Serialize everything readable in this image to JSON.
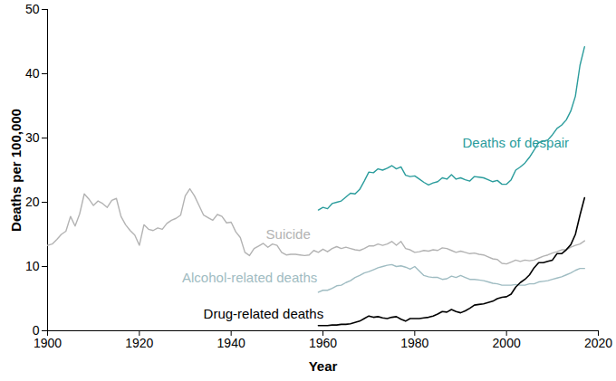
{
  "chart_data": {
    "type": "line",
    "x_label": "Year",
    "y_label": "Deaths per 100,000",
    "xlim": [
      1900,
      2020
    ],
    "xticks": [
      1900,
      1920,
      1940,
      1960,
      1980,
      2000,
      2020
    ],
    "ylim": [
      0,
      50
    ],
    "yticks": [
      0,
      10,
      20,
      30,
      40,
      50
    ],
    "grid": false,
    "x": [
      1900,
      1901,
      1902,
      1903,
      1904,
      1905,
      1906,
      1907,
      1908,
      1909,
      1910,
      1911,
      1912,
      1913,
      1914,
      1915,
      1916,
      1917,
      1918,
      1919,
      1920,
      1921,
      1922,
      1923,
      1924,
      1925,
      1926,
      1927,
      1928,
      1929,
      1930,
      1931,
      1932,
      1933,
      1934,
      1935,
      1936,
      1937,
      1938,
      1939,
      1940,
      1941,
      1942,
      1943,
      1944,
      1945,
      1946,
      1947,
      1948,
      1949,
      1950,
      1951,
      1952,
      1953,
      1954,
      1955,
      1956,
      1957,
      1958,
      1959,
      1960,
      1961,
      1962,
      1963,
      1964,
      1965,
      1966,
      1967,
      1968,
      1969,
      1970,
      1971,
      1972,
      1973,
      1974,
      1975,
      1976,
      1977,
      1978,
      1979,
      1980,
      1981,
      1982,
      1983,
      1984,
      1985,
      1986,
      1987,
      1988,
      1989,
      1990,
      1991,
      1992,
      1993,
      1994,
      1995,
      1996,
      1997,
      1998,
      1999,
      2000,
      2001,
      2002,
      2003,
      2004,
      2005,
      2006,
      2007,
      2008,
      2009,
      2010,
      2011,
      2012,
      2013,
      2014,
      2015,
      2016,
      2017
    ],
    "series": [
      {
        "name": "Suicide",
        "color": "#b3b3b3",
        "values": [
          13.3,
          13.5,
          14.2,
          15.0,
          15.5,
          17.8,
          16.3,
          18.2,
          21.3,
          20.5,
          19.5,
          20.2,
          19.8,
          19.2,
          20.3,
          20.6,
          17.8,
          16.5,
          15.6,
          14.9,
          13.3,
          16.5,
          15.8,
          15.6,
          16.0,
          15.8,
          16.7,
          17.2,
          17.5,
          18.0,
          21.0,
          22.1,
          21.0,
          19.5,
          18.0,
          17.6,
          17.2,
          18.1,
          17.8,
          16.8,
          16.9,
          15.4,
          14.5,
          12.2,
          11.7,
          12.8,
          13.2,
          13.6,
          13.0,
          13.5,
          13.3,
          12.2,
          11.8,
          11.9,
          11.9,
          11.8,
          11.7,
          11.8,
          12.5,
          12.2,
          12.7,
          12.3,
          12.8,
          13.1,
          12.8,
          13.0,
          12.8,
          12.6,
          12.5,
          12.8,
          13.2,
          13.2,
          13.5,
          13.3,
          13.5,
          13.9,
          13.3,
          13.9,
          12.8,
          12.6,
          12.2,
          12.3,
          12.5,
          12.4,
          12.6,
          12.5,
          12.9,
          12.8,
          12.5,
          12.2,
          12.4,
          12.2,
          12.0,
          12.1,
          11.9,
          11.8,
          11.5,
          11.2,
          11.1,
          10.5,
          10.4,
          10.7,
          11.0,
          10.8,
          11.0,
          10.9,
          11.0,
          11.3,
          11.6,
          11.8,
          12.1,
          12.3,
          12.6,
          12.6,
          13.0,
          13.3,
          13.5,
          14.0
        ]
      },
      {
        "name": "Alcohol-related deaths",
        "color": "#9fbcc2",
        "values": [
          null,
          null,
          null,
          null,
          null,
          null,
          null,
          null,
          null,
          null,
          null,
          null,
          null,
          null,
          null,
          null,
          null,
          null,
          null,
          null,
          null,
          null,
          null,
          null,
          null,
          null,
          null,
          null,
          null,
          null,
          null,
          null,
          null,
          null,
          null,
          null,
          null,
          null,
          null,
          null,
          null,
          null,
          null,
          null,
          null,
          null,
          null,
          null,
          null,
          null,
          null,
          null,
          null,
          null,
          null,
          null,
          null,
          null,
          null,
          6.0,
          6.3,
          6.3,
          6.6,
          7.0,
          7.1,
          7.5,
          7.8,
          8.3,
          8.6,
          9.0,
          9.2,
          9.5,
          9.8,
          10.0,
          10.2,
          10.3,
          10.0,
          10.1,
          9.9,
          9.6,
          10.0,
          9.3,
          8.6,
          8.4,
          8.3,
          8.3,
          8.0,
          8.1,
          8.5,
          8.3,
          8.6,
          8.3,
          8.0,
          8.0,
          7.9,
          7.8,
          7.6,
          7.4,
          7.3,
          7.1,
          7.1,
          7.1,
          7.2,
          7.1,
          7.1,
          7.3,
          7.3,
          7.6,
          7.7,
          7.8,
          8.0,
          8.2,
          8.4,
          8.7,
          9.0,
          9.4,
          9.7,
          9.7
        ]
      },
      {
        "name": "Drug-related deaths",
        "color": "#000000",
        "values": [
          null,
          null,
          null,
          null,
          null,
          null,
          null,
          null,
          null,
          null,
          null,
          null,
          null,
          null,
          null,
          null,
          null,
          null,
          null,
          null,
          null,
          null,
          null,
          null,
          null,
          null,
          null,
          null,
          null,
          null,
          null,
          null,
          null,
          null,
          null,
          null,
          null,
          null,
          null,
          null,
          null,
          null,
          null,
          null,
          null,
          null,
          null,
          null,
          null,
          null,
          null,
          null,
          null,
          null,
          null,
          null,
          null,
          null,
          null,
          0.8,
          0.8,
          0.8,
          0.9,
          0.9,
          1.0,
          1.0,
          1.1,
          1.3,
          1.5,
          1.9,
          2.3,
          2.1,
          2.2,
          2.0,
          1.9,
          2.1,
          2.2,
          1.8,
          1.5,
          1.9,
          1.9,
          1.9,
          2.0,
          2.1,
          2.3,
          2.6,
          3.0,
          2.9,
          3.3,
          3.0,
          2.8,
          3.1,
          3.5,
          4.0,
          4.1,
          4.2,
          4.4,
          4.6,
          5.0,
          5.2,
          5.3,
          5.7,
          6.8,
          7.5,
          8.0,
          8.7,
          9.8,
          10.6,
          10.6,
          10.8,
          11.0,
          12.0,
          12.0,
          12.6,
          13.4,
          15.0,
          18.0,
          20.7
        ]
      },
      {
        "name": "Deaths of despair",
        "color": "#2a9c9c",
        "values": [
          null,
          null,
          null,
          null,
          null,
          null,
          null,
          null,
          null,
          null,
          null,
          null,
          null,
          null,
          null,
          null,
          null,
          null,
          null,
          null,
          null,
          null,
          null,
          null,
          null,
          null,
          null,
          null,
          null,
          null,
          null,
          null,
          null,
          null,
          null,
          null,
          null,
          null,
          null,
          null,
          null,
          null,
          null,
          null,
          null,
          null,
          null,
          null,
          null,
          null,
          null,
          null,
          null,
          null,
          null,
          null,
          null,
          null,
          null,
          18.8,
          19.2,
          19.0,
          19.8,
          20.0,
          20.2,
          20.8,
          21.4,
          21.3,
          22.0,
          23.3,
          24.7,
          24.6,
          25.2,
          25.0,
          25.3,
          25.7,
          25.2,
          25.5,
          24.2,
          24.0,
          24.1,
          23.6,
          23.1,
          22.7,
          23.0,
          23.2,
          23.8,
          23.6,
          24.3,
          23.6,
          23.8,
          23.5,
          23.3,
          24.0,
          23.9,
          23.8,
          23.5,
          23.2,
          23.4,
          22.8,
          22.8,
          23.5,
          25.0,
          25.5,
          26.1,
          27.0,
          28.1,
          29.3,
          29.5,
          29.7,
          30.5,
          31.5,
          32.0,
          32.8,
          34.2,
          36.5,
          41.3,
          44.2
        ]
      }
    ]
  }
}
